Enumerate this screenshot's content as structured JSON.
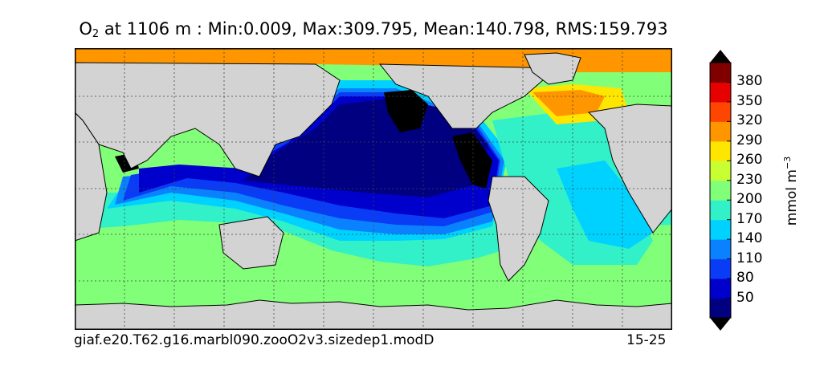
{
  "title": {
    "variable": "O",
    "subscript": "2",
    "text": " at 1106 m : Min:0.009, Max:309.795, Mean:140.798, RMS:159.793"
  },
  "footer": {
    "case_name": "giaf.e20.T62.g16.marbl090.zooO2v3.sizedep1.modD",
    "year_range": "15-25"
  },
  "colorbar": {
    "label_main": "mmol m",
    "label_exp": "−3",
    "ticks": [
      "380",
      "350",
      "320",
      "290",
      "260",
      "230",
      "200",
      "170",
      "140",
      "110",
      "80",
      "50"
    ],
    "colors": [
      "#000080",
      "#0000cd",
      "#0a3cf5",
      "#0a82ff",
      "#00d2ff",
      "#32f0c8",
      "#82ff78",
      "#c8ff32",
      "#ffe600",
      "#ff9600",
      "#ff4600",
      "#e60000",
      "#800000"
    ],
    "extend": "both"
  },
  "chart_data": {
    "type": "heatmap",
    "subtype": "filled-contour world map",
    "variable": "O2",
    "depth": "1106 m",
    "stats": {
      "min": 0.009,
      "max": 309.795,
      "mean": 140.798,
      "rms": 159.793
    },
    "units": "mmol m-3",
    "contour_levels": [
      50,
      80,
      110,
      140,
      170,
      200,
      230,
      260,
      290,
      320,
      350,
      380
    ],
    "land_color": "#d3d3d3",
    "missing_color": "#ffffff",
    "grid": true,
    "colorbar_position": "right"
  }
}
